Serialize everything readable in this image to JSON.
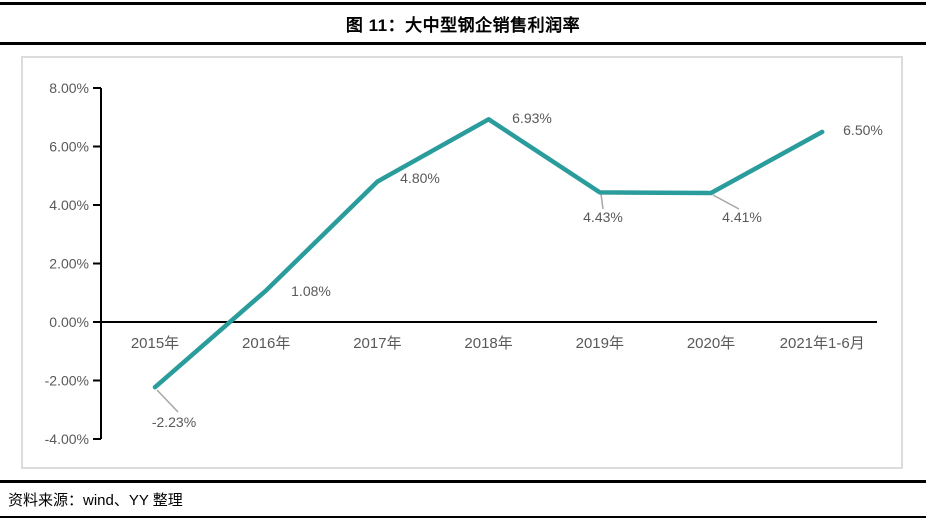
{
  "header": {
    "title": "图 11：大中型钢企销售利润率"
  },
  "footer": {
    "source": "资料来源：wind、YY 整理"
  },
  "colors": {
    "line": "#2a9c9c",
    "axis": "#000000",
    "tick_label": "#595959",
    "data_label": "#595959",
    "leader_line": "#a6a6a6",
    "panel_border": "#dcdcdc",
    "rule": "#000000"
  },
  "chart_data": {
    "type": "line",
    "title": "图 11：大中型钢企销售利润率",
    "categories": [
      "2015年",
      "2016年",
      "2017年",
      "2018年",
      "2019年",
      "2020年",
      "2021年1-6月"
    ],
    "values": [
      -2.23,
      1.08,
      4.8,
      6.93,
      4.43,
      4.41,
      6.5
    ],
    "data_labels": [
      "-2.23%",
      "1.08%",
      "4.80%",
      "6.93%",
      "4.43%",
      "4.41%",
      "6.50%"
    ],
    "y_tick_labels": [
      "8.00%",
      "6.00%",
      "4.00%",
      "2.00%",
      "0.00%",
      "-2.00%",
      "-4.00%"
    ],
    "y_tick_values": [
      8,
      6,
      4,
      2,
      0,
      -2,
      -4
    ],
    "ylim": [
      -4,
      8
    ],
    "xlabel": "",
    "ylabel": "",
    "grid": false,
    "legend": "none"
  }
}
